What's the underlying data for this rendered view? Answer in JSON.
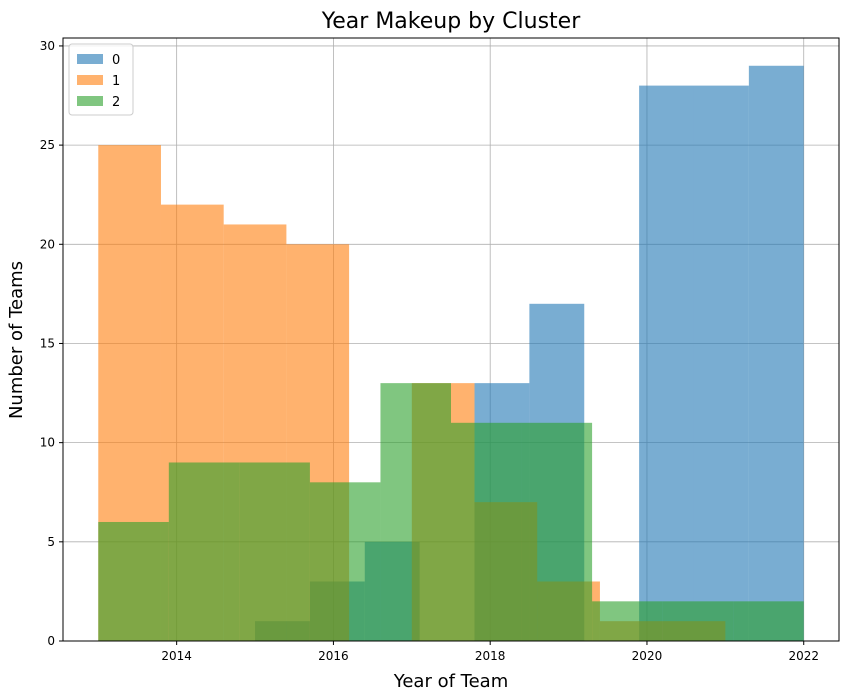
{
  "chart_data": {
    "type": "histogram",
    "title": "Year Makeup by Cluster",
    "xlabel": "Year of Team",
    "ylabel": "Number of Teams",
    "xlim": [
      2012.55,
      2022.45
    ],
    "ylim": [
      0,
      30.4
    ],
    "xticks": [
      2014,
      2016,
      2018,
      2020,
      2022
    ],
    "yticks": [
      0,
      5,
      10,
      15,
      20,
      25,
      30
    ],
    "grid": true,
    "legend_position": "top-left",
    "series": [
      {
        "name": "0",
        "color": "#1f77b4",
        "opacity": 0.6,
        "bin_edges": [
          2015.0,
          2015.7,
          2016.4,
          2017.1,
          2017.8,
          2018.5,
          2019.2,
          2019.9,
          2020.6,
          2021.3,
          2022.0
        ],
        "counts": [
          1,
          3,
          5,
          0,
          13,
          17,
          0,
          28,
          28,
          29
        ]
      },
      {
        "name": "1",
        "color": "#ff7f0e",
        "opacity": 0.6,
        "bin_edges": [
          2013.0,
          2013.8,
          2014.6,
          2015.4,
          2016.2,
          2017.0,
          2017.8,
          2018.6,
          2019.4,
          2020.2,
          2021.0
        ],
        "counts": [
          25,
          22,
          21,
          20,
          0,
          13,
          7,
          3,
          1,
          1
        ]
      },
      {
        "name": "2",
        "color": "#2ca02c",
        "opacity": 0.6,
        "bin_edges": [
          2013.0,
          2013.9,
          2014.8,
          2015.7,
          2016.6,
          2017.5,
          2018.4,
          2019.3,
          2020.2,
          2021.1,
          2022.0
        ],
        "counts": [
          6,
          9,
          9,
          8,
          13,
          11,
          11,
          2,
          2,
          2
        ]
      }
    ]
  }
}
